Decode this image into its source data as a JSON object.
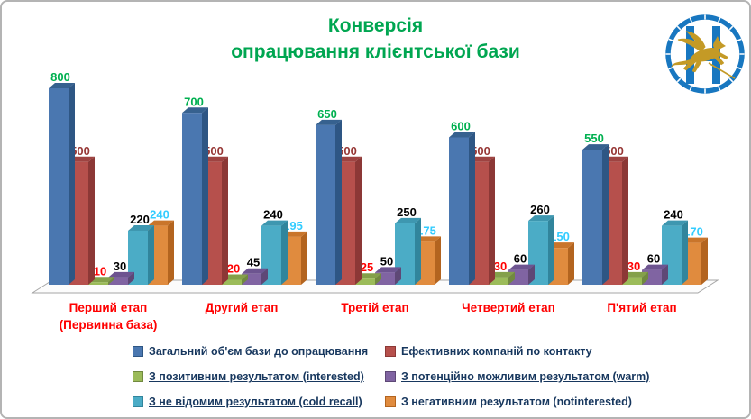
{
  "title": {
    "line1": "Конверсія",
    "line2": "опрацювання клієнтської бази"
  },
  "ui_colors": {
    "title": "#00A651",
    "category_label": "#FF0000",
    "legend_text": "#17375E",
    "slide_border": "#B4B4B4",
    "floor_edge": "#A6A6A6",
    "floor_fill": "#FCFCFC"
  },
  "logo": {
    "name": "winged-lion-bank-emblem",
    "ring_color": "#1877C0",
    "pillar_color": "#1877C0",
    "lion_color": "#C49A26"
  },
  "chart_data": {
    "type": "bar",
    "title": "Конверсія опрацювання клієнтської бази",
    "ylim": [
      0,
      800
    ],
    "grid": false,
    "value_labels": true,
    "legend_position": "bottom",
    "categories": [
      {
        "line1": "Перший етап",
        "line2": "(Первинна база)"
      },
      {
        "line1": "Другий етап",
        "line2": ""
      },
      {
        "line1": "Третій етап",
        "line2": ""
      },
      {
        "line1": "Четвертий етап",
        "line2": ""
      },
      {
        "line1": "П'ятий етап",
        "line2": ""
      }
    ],
    "series": [
      {
        "name": "Загальний об'єм бази до опрацювання",
        "values": [
          800,
          700,
          650,
          600,
          550
        ],
        "color": "#4A77B0",
        "side_color": "#2E5684",
        "top_color": "#36618F",
        "label_color": "#00B050",
        "legend_underline": false
      },
      {
        "name": "Ефективних компаній по контакту",
        "values": [
          500,
          500,
          500,
          500,
          500
        ],
        "color": "#B6504C",
        "side_color": "#8C3836",
        "top_color": "#9E4341",
        "label_color": "#963634",
        "legend_underline": false
      },
      {
        "name": "З позитивним результатом (interested)",
        "values": [
          10,
          20,
          25,
          30,
          30
        ],
        "color": "#9BBB59",
        "side_color": "#71893F",
        "top_color": "#84A04A",
        "label_color": "#FF0000",
        "legend_underline": true
      },
      {
        "name": "З потенційно можливим результатом (warm)",
        "values": [
          30,
          45,
          50,
          60,
          60
        ],
        "color": "#8064A2",
        "side_color": "#5E4876",
        "top_color": "#6D5490",
        "label_color": "#000000",
        "legend_underline": true
      },
      {
        "name": "З не відомим результатом (cold recall)",
        "values": [
          220,
          240,
          250,
          260,
          240
        ],
        "color": "#4BACC6",
        "side_color": "#31859C",
        "top_color": "#3E97B0",
        "label_color": "#000000",
        "legend_underline": true
      },
      {
        "name": "З негативним результатом (notinterested)",
        "values": [
          240,
          195,
          175,
          150,
          170
        ],
        "color": "#E08B3E",
        "side_color": "#B3641F",
        "top_color": "#C9752B",
        "label_color": "#33CCFF",
        "legend_underline": false
      }
    ]
  }
}
